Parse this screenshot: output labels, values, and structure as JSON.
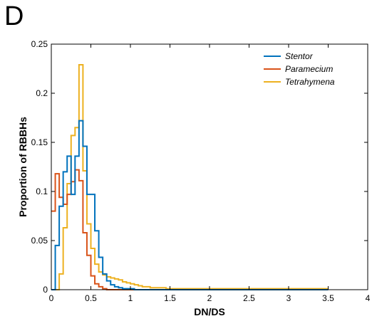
{
  "panel_label": "D",
  "chart_data": {
    "type": "line",
    "title": "",
    "xlabel": "DN/DS",
    "ylabel": "Proportion of RBBHs",
    "xlim": [
      0,
      4
    ],
    "ylim": [
      0,
      0.25
    ],
    "x_ticks": [
      0,
      0.5,
      1,
      1.5,
      2,
      2.5,
      3,
      3.5,
      4
    ],
    "x_tick_labels": [
      "0",
      "0.5",
      "1",
      "1.5",
      "2",
      "2.5",
      "3",
      "3.5",
      "4"
    ],
    "y_ticks": [
      0,
      0.05,
      0.1,
      0.15,
      0.2,
      0.25
    ],
    "y_tick_labels": [
      "0",
      "0.05",
      "0.1",
      "0.15",
      "0.2",
      "0.25"
    ],
    "grid": false,
    "legend_position": "top-right",
    "bin_width": 0.05,
    "series": [
      {
        "name": "Stentor",
        "color": "#0072BD",
        "values": [
          0.0,
          0.045,
          0.085,
          0.12,
          0.136,
          0.097,
          0.136,
          0.172,
          0.146,
          0.097,
          0.097,
          0.06,
          0.033,
          0.016,
          0.009,
          0.005,
          0.003,
          0.002,
          0.001,
          0.001,
          0.001,
          0.0,
          0.0,
          0.0,
          0.0,
          0.0,
          0.0,
          0.0,
          0.0,
          0.0,
          0.0,
          0.0,
          0.0,
          0.0,
          0.0,
          0.0,
          0.0,
          0.0,
          0.0,
          0.0,
          0.0,
          0.0,
          0.0,
          0.0,
          0.0,
          0.0,
          0.0,
          0.0,
          0.0,
          0.0,
          0.0,
          0.0,
          0.0,
          0.0,
          0.0,
          0.0,
          0.0,
          0.0,
          0.0,
          0.0,
          0.0,
          0.0,
          0.0,
          0.0,
          0.0,
          0.0,
          0.0,
          0.0,
          0.0,
          0.0
        ]
      },
      {
        "name": "Paramecium",
        "color": "#D95319",
        "values": [
          0.08,
          0.118,
          0.094,
          0.087,
          0.097,
          0.11,
          0.122,
          0.111,
          0.058,
          0.035,
          0.014,
          0.006,
          0.003,
          0.001,
          0.0,
          0.0,
          0.0,
          0.0,
          0.0,
          0.0,
          0.0,
          0.0,
          0.0,
          0.0,
          0.0,
          0.0,
          0.0,
          0.0,
          0.0,
          0.0,
          0.0,
          0.0,
          0.0,
          0.0,
          0.0,
          0.0,
          0.0,
          0.0,
          0.0,
          0.0,
          0.0,
          0.0,
          0.0,
          0.0,
          0.0,
          0.0,
          0.0,
          0.0,
          0.0,
          0.0,
          0.0,
          0.0,
          0.0,
          0.0,
          0.0,
          0.0,
          0.0,
          0.0,
          0.0,
          0.0,
          0.0,
          0.0,
          0.0,
          0.0,
          0.0,
          0.0,
          0.0,
          0.0,
          0.0,
          0.0
        ]
      },
      {
        "name": "Tetrahymena",
        "color": "#EDB120",
        "values": [
          0.0,
          0.0,
          0.016,
          0.063,
          0.108,
          0.157,
          0.165,
          0.229,
          0.121,
          0.067,
          0.042,
          0.026,
          0.018,
          0.015,
          0.013,
          0.012,
          0.011,
          0.01,
          0.008,
          0.007,
          0.006,
          0.005,
          0.004,
          0.003,
          0.003,
          0.002,
          0.002,
          0.002,
          0.002,
          0.001,
          0.001,
          0.001,
          0.001,
          0.001,
          0.001,
          0.001,
          0.001,
          0.001,
          0.001,
          0.001,
          0.001,
          0.001,
          0.001,
          0.001,
          0.001,
          0.001,
          0.001,
          0.001,
          0.001,
          0.001,
          0.001,
          0.001,
          0.001,
          0.001,
          0.001,
          0.001,
          0.001,
          0.001,
          0.001,
          0.001,
          0.001,
          0.001,
          0.001,
          0.001,
          0.001,
          0.001,
          0.001,
          0.001,
          0.001,
          0.001
        ]
      }
    ]
  }
}
